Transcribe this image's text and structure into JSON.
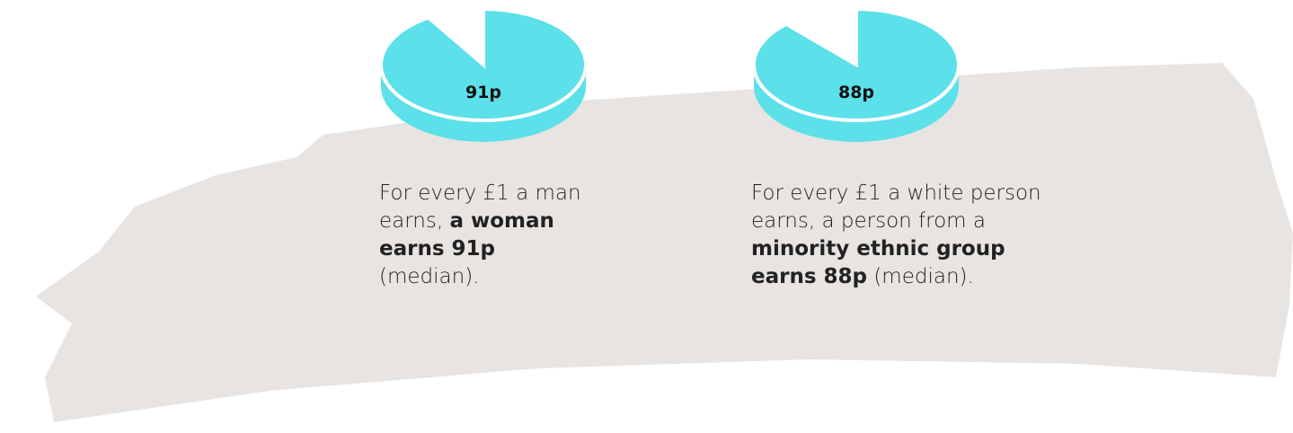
{
  "chart_data": [
    {
      "type": "pie",
      "values": [
        91
      ],
      "value_labels": [
        "91p"
      ],
      "color": "#5ce0ea",
      "caption": [
        {
          "text": "For every £1 a man earns, "
        },
        {
          "text": "a woman earns 91p",
          "bold": true
        },
        {
          "text": " (median)."
        }
      ]
    },
    {
      "type": "pie",
      "values": [
        88
      ],
      "value_labels": [
        "88p"
      ],
      "color": "#5ce0ea",
      "caption": [
        {
          "text": "For every £1 a white person earns, a person from a "
        },
        {
          "text": "minority ethnic group earns 88p",
          "bold": true
        },
        {
          "text": " (median)."
        }
      ]
    }
  ]
}
